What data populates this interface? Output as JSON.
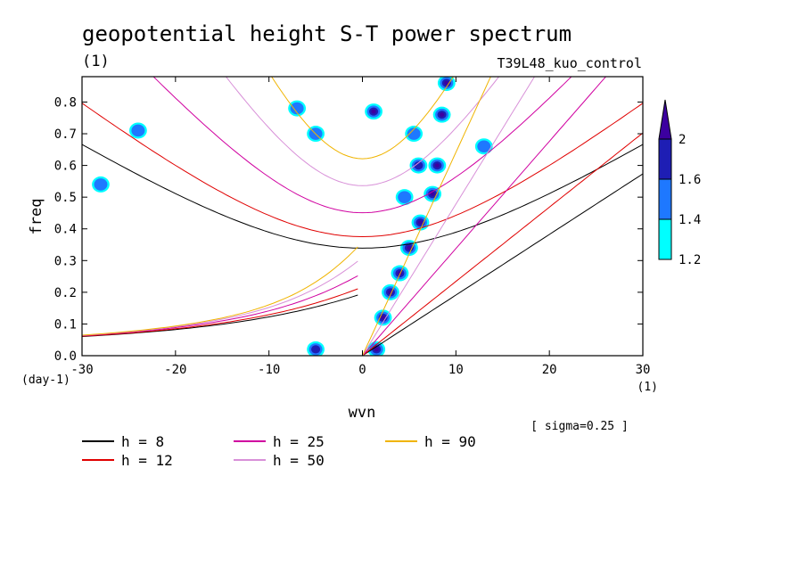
{
  "chart_data": {
    "type": "line",
    "title": "geopotential height S-T power spectrum",
    "units_label": "(1)",
    "experiment": "T39L48_kuo_control",
    "xlabel": "wvn",
    "ylabel": "freq",
    "x_unit": "(1)",
    "y_unit": "(day-1)",
    "xlim": [
      -30,
      30
    ],
    "ylim": [
      0,
      0.88
    ],
    "xticks": [
      -30,
      -20,
      -10,
      0,
      10,
      20,
      30
    ],
    "yticks": [
      0.0,
      0.1,
      0.2,
      0.3,
      0.4,
      0.5,
      0.6,
      0.7,
      0.8
    ],
    "note": "[ sigma=0.25 ]",
    "colorbar": {
      "levels": [
        "1.2",
        "1.4",
        "1.6",
        "2"
      ],
      "colors": [
        "#00ffff",
        "#1e78ff",
        "#1e1eb4",
        "#3c00a0"
      ]
    },
    "series": [
      {
        "name": "h = 8",
        "color": "#000000",
        "h": 8
      },
      {
        "name": "h = 12",
        "color": "#e00000",
        "h": 12
      },
      {
        "name": "h = 25",
        "color": "#d000a0",
        "h": 25
      },
      {
        "name": "h = 50",
        "color": "#d890d8",
        "h": 50
      },
      {
        "name": "h = 90",
        "color": "#f0b400",
        "h": 90
      }
    ],
    "power_blobs": [
      {
        "x": 1.5,
        "y": 0.02,
        "level": 3
      },
      {
        "x": 2.2,
        "y": 0.12,
        "level": 3
      },
      {
        "x": 3.0,
        "y": 0.2,
        "level": 3
      },
      {
        "x": 4.0,
        "y": 0.26,
        "level": 3
      },
      {
        "x": 5.0,
        "y": 0.34,
        "level": 3
      },
      {
        "x": 6.2,
        "y": 0.42,
        "level": 3
      },
      {
        "x": 7.5,
        "y": 0.51,
        "level": 3
      },
      {
        "x": 8.0,
        "y": 0.6,
        "level": 3
      },
      {
        "x": 8.5,
        "y": 0.76,
        "level": 3
      },
      {
        "x": 9.0,
        "y": 0.86,
        "level": 3
      },
      {
        "x": 1.2,
        "y": 0.77,
        "level": 3
      },
      {
        "x": -5.0,
        "y": 0.02,
        "level": 2
      },
      {
        "x": 6.0,
        "y": 0.6,
        "level": 2
      },
      {
        "x": 4.5,
        "y": 0.5,
        "level": 1
      },
      {
        "x": 13.0,
        "y": 0.66,
        "level": 1
      },
      {
        "x": -7.0,
        "y": 0.78,
        "level": 1
      },
      {
        "x": -5.0,
        "y": 0.7,
        "level": 1
      },
      {
        "x": 5.5,
        "y": 0.7,
        "level": 1
      },
      {
        "x": -24.0,
        "y": 0.71,
        "level": 1
      },
      {
        "x": -28.0,
        "y": 0.54,
        "level": 1
      }
    ]
  }
}
